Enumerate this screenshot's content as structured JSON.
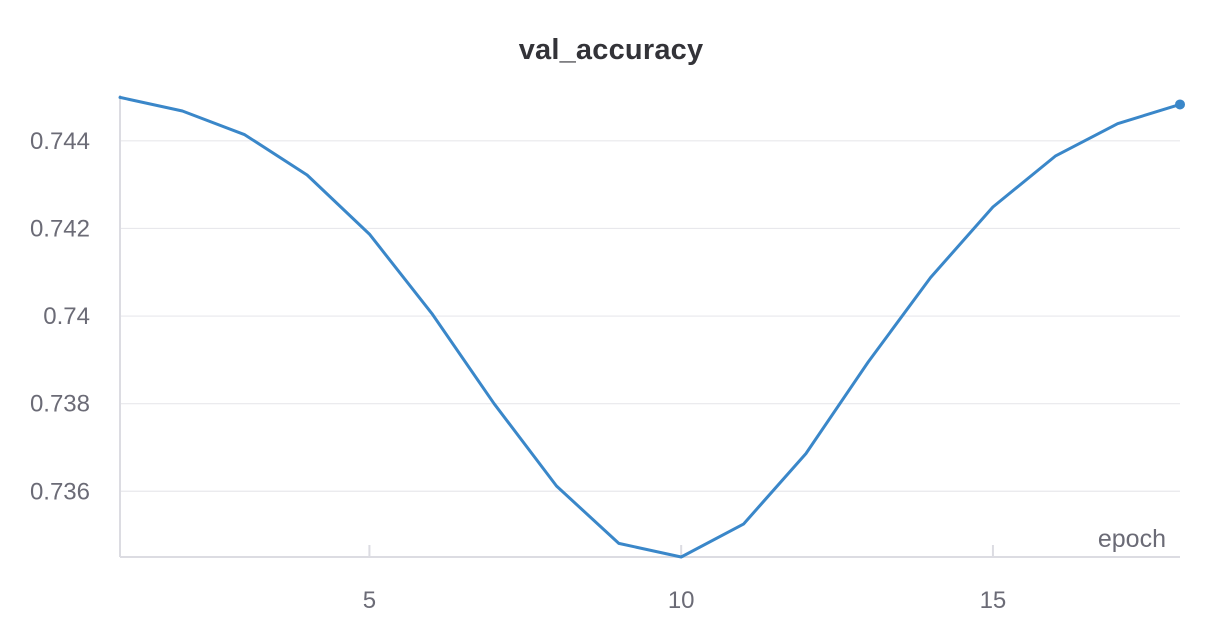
{
  "chart_data": {
    "type": "line",
    "title": "val_accuracy",
    "xlabel": "epoch",
    "ylabel": "",
    "xlim": [
      1,
      18
    ],
    "ylim": [
      0.7345,
      0.745
    ],
    "x_ticks": [
      5,
      10,
      15
    ],
    "x_tick_labels": [
      "5",
      "10",
      "15"
    ],
    "y_ticks": [
      0.736,
      0.738,
      0.74,
      0.742,
      0.744
    ],
    "y_tick_labels": [
      "0.736",
      "0.738",
      "0.74",
      "0.742",
      "0.744"
    ],
    "grid": true,
    "legend": "none",
    "line_color": "#3a87c9",
    "series": [
      {
        "x": [
          1,
          2,
          3,
          4,
          5,
          6,
          7,
          8,
          9,
          10,
          11,
          12,
          13,
          14,
          15,
          16,
          17,
          18
        ],
        "values": [
          0.74499,
          0.74468,
          0.74414,
          0.74322,
          0.74187,
          0.74006,
          0.738,
          0.73612,
          0.73481,
          0.7345,
          0.73525,
          0.73686,
          0.73895,
          0.74088,
          0.74249,
          0.74365,
          0.74439,
          0.74483
        ]
      }
    ]
  }
}
